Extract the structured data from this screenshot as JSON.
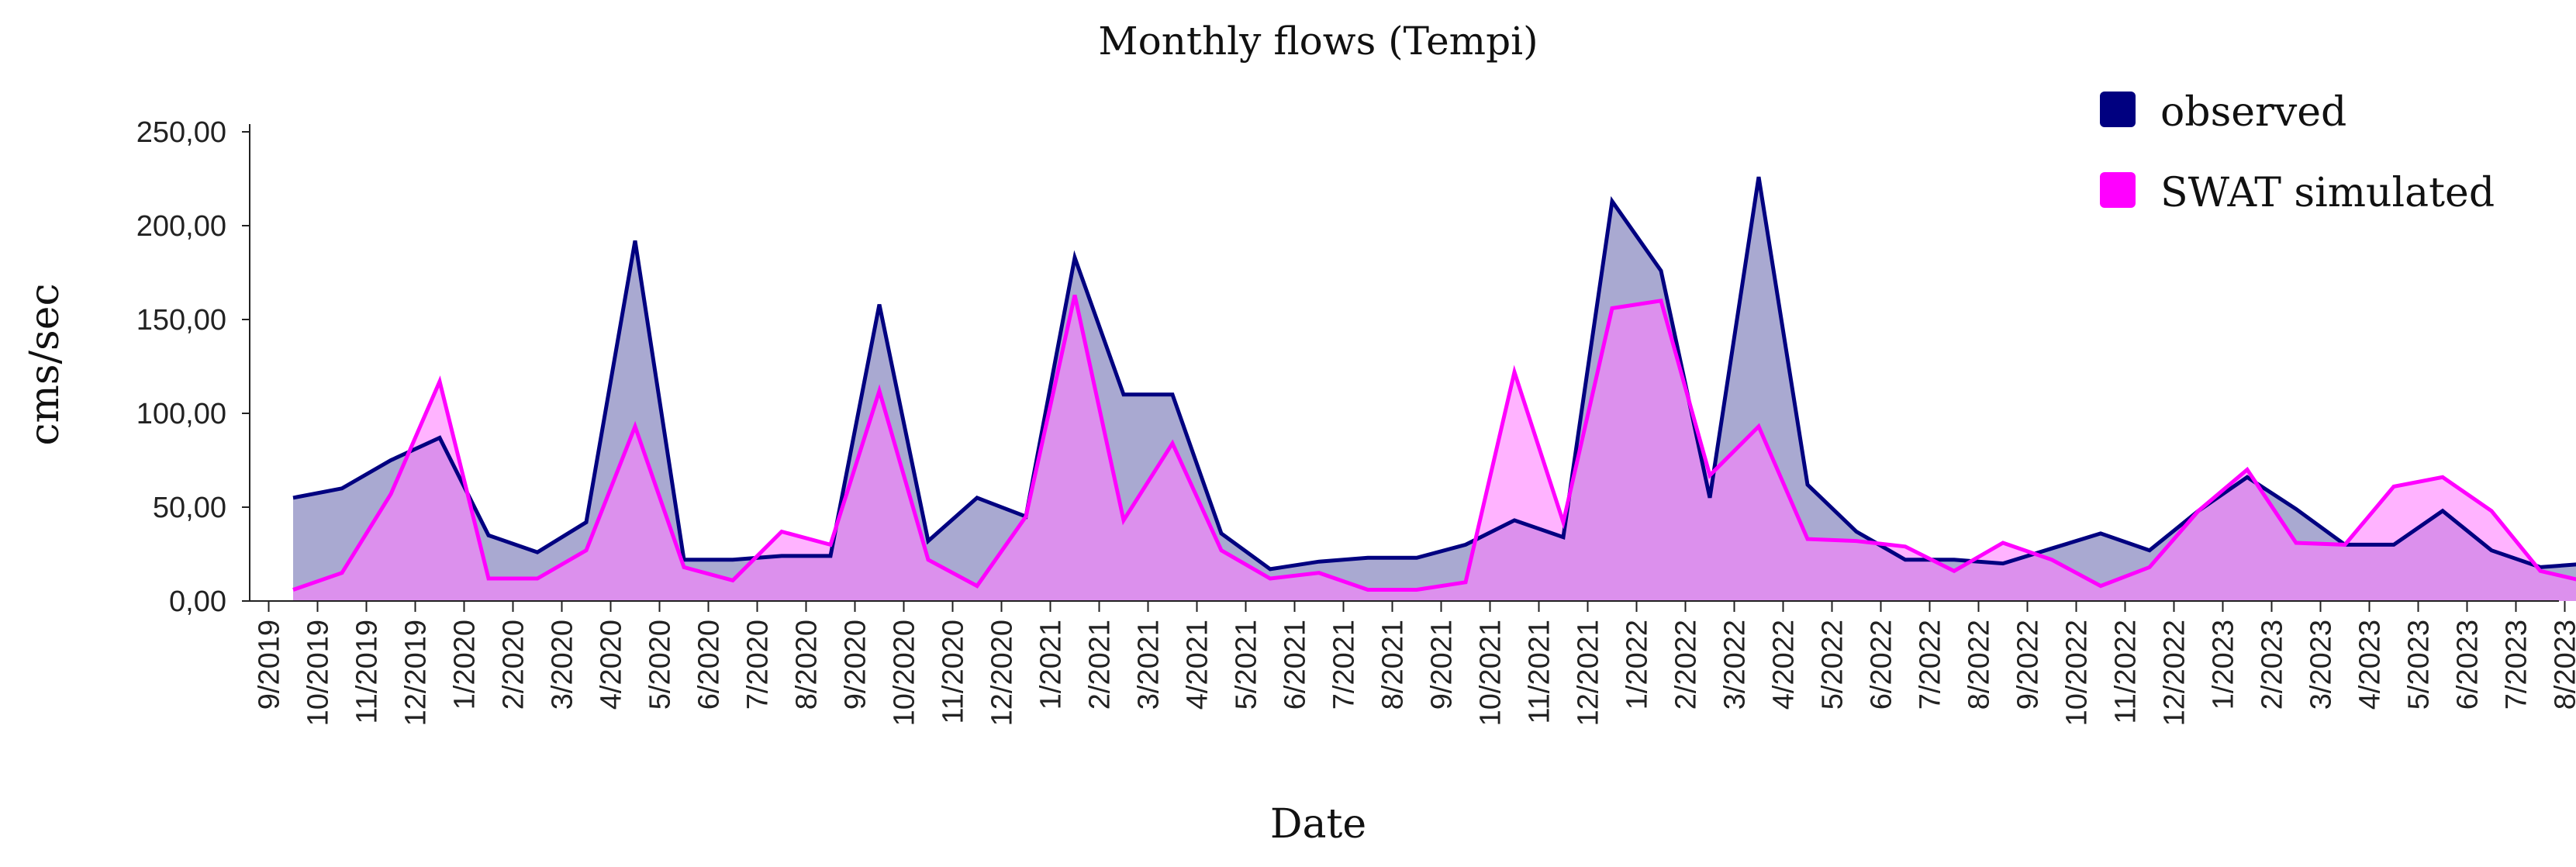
{
  "chart_data": {
    "type": "area",
    "title": "Monthly flows (Tempi)",
    "xlabel": "Date",
    "ylabel": "cms/sec",
    "ylim": [
      0,
      250
    ],
    "yticks": [
      "0,00",
      "50,00",
      "100,00",
      "150,00",
      "200,00",
      "250,00"
    ],
    "ytick_values": [
      0,
      50,
      100,
      150,
      200,
      250
    ],
    "grid": false,
    "legend_position": "top-right",
    "x": [
      "9/2019",
      "10/2019",
      "11/2019",
      "12/2019",
      "1/2020",
      "2/2020",
      "3/2020",
      "4/2020",
      "5/2020",
      "6/2020",
      "7/2020",
      "8/2020",
      "9/2020",
      "10/2020",
      "11/2020",
      "12/2020",
      "1/2021",
      "2/2021",
      "3/2021",
      "4/2021",
      "5/2021",
      "6/2021",
      "7/2021",
      "8/2021",
      "9/2021",
      "10/2021",
      "11/2021",
      "12/2021",
      "1/2022",
      "2/2022",
      "3/2022",
      "4/2022",
      "5/2022",
      "6/2022",
      "7/2022",
      "8/2022",
      "9/2022",
      "10/2022",
      "11/2022",
      "12/2022",
      "1/2023",
      "2/2023",
      "3/2023",
      "4/2023",
      "5/2023",
      "6/2023",
      "7/2023",
      "8/2023"
    ],
    "series": [
      {
        "name": "observed",
        "color": "#000080",
        "fill": "#a9a9d1",
        "values": [
          55,
          60,
          75,
          87,
          35,
          26,
          42,
          192,
          22,
          22,
          24,
          24,
          158,
          32,
          55,
          45,
          183,
          110,
          110,
          36,
          17,
          21,
          23,
          23,
          30,
          43,
          34,
          213,
          176,
          55,
          226,
          62,
          37,
          22,
          22,
          20,
          28,
          36,
          27,
          48,
          66,
          49,
          30,
          30,
          48,
          27,
          18,
          20
        ]
      },
      {
        "name": "SWAT simulated",
        "color": "#ff00ff",
        "fill": "#ff80ff",
        "values": [
          6,
          15,
          57,
          117,
          12,
          12,
          27,
          93,
          18,
          11,
          37,
          30,
          112,
          22,
          8,
          45,
          163,
          43,
          84,
          27,
          12,
          15,
          6,
          6,
          10,
          122,
          42,
          156,
          160,
          67,
          93,
          33,
          32,
          29,
          16,
          31,
          22,
          8,
          18,
          48,
          70,
          31,
          30,
          61,
          66,
          48,
          16,
          10
        ]
      }
    ]
  }
}
